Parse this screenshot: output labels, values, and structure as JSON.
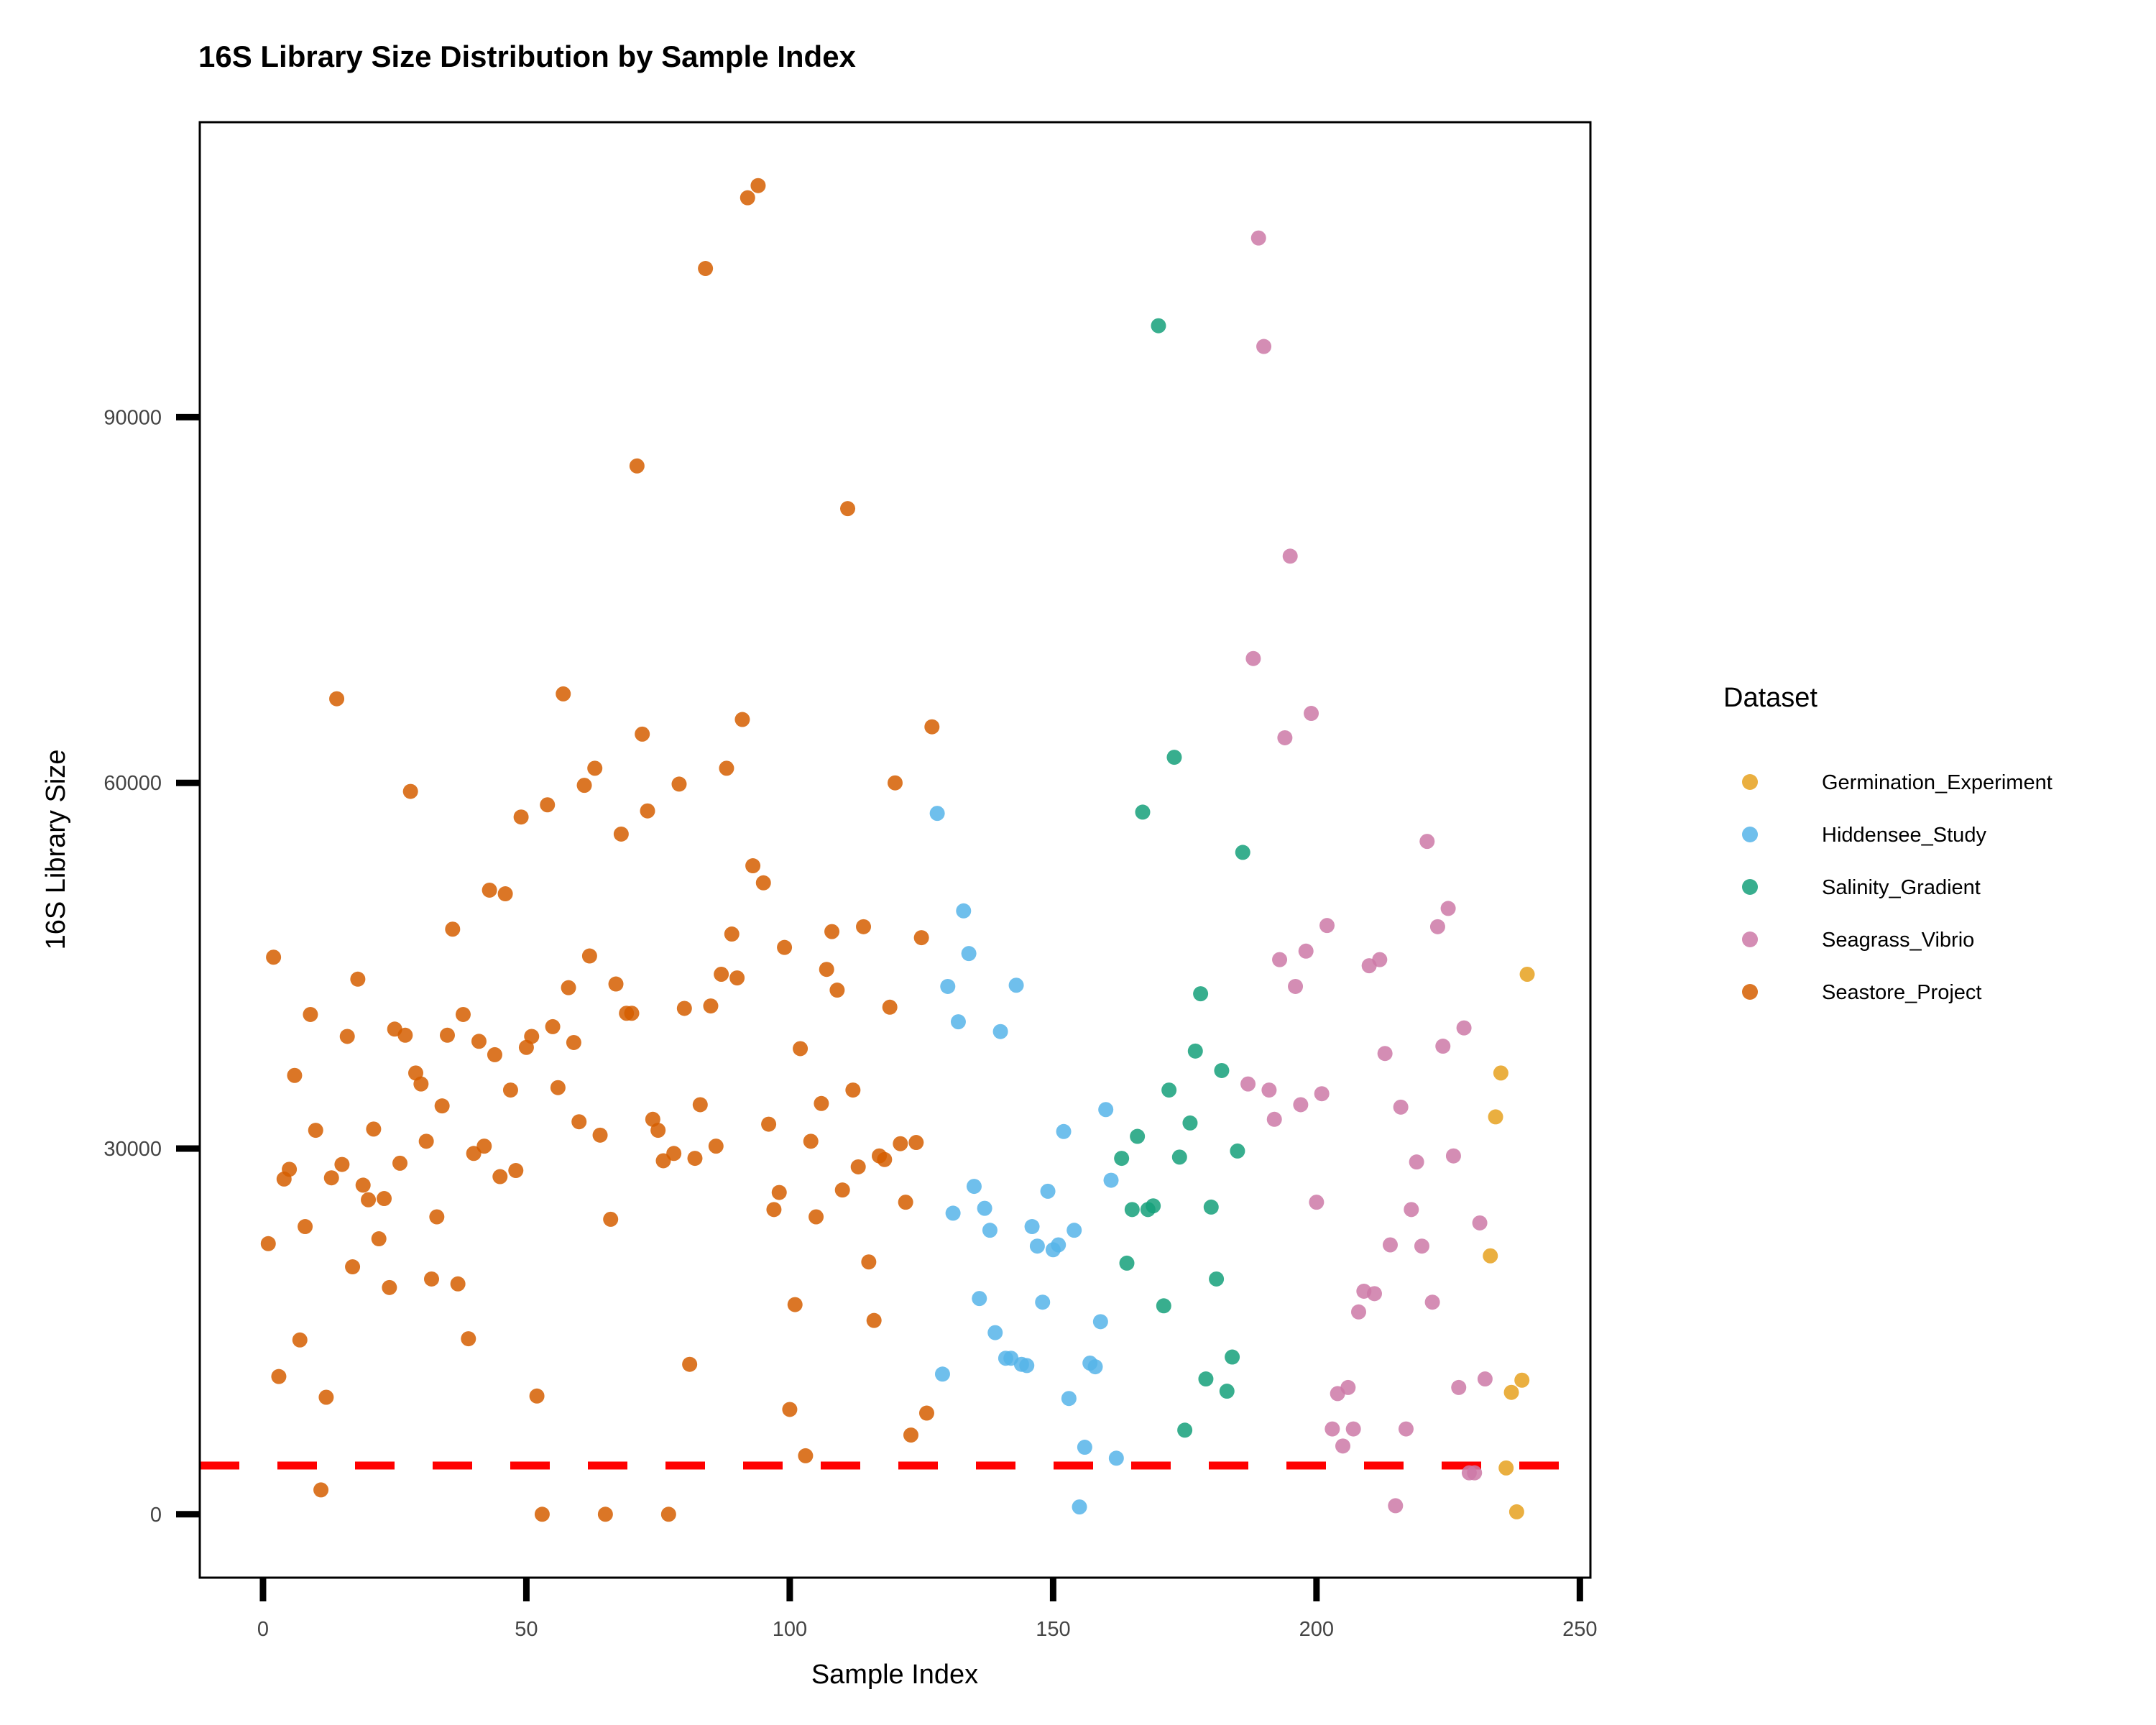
{
  "chart_data": {
    "type": "scatter",
    "title": "16S Library Size Distribution by Sample Index",
    "xlabel": "Sample Index",
    "ylabel": "16S Library Size",
    "xlim": [
      -12,
      252
    ],
    "ylim": [
      -5200,
      114200
    ],
    "xticks": [
      0,
      50,
      100,
      150,
      200,
      250
    ],
    "yticks": [
      0,
      30000,
      60000,
      90000
    ],
    "threshold": 4000,
    "grid": false,
    "legend": {
      "title": "Dataset",
      "position": "right"
    },
    "series": [
      {
        "name": "Germination_Experiment",
        "color": "#E6A11F",
        "points": [
          [
            233,
            21200
          ],
          [
            234,
            32600
          ],
          [
            235,
            36200
          ],
          [
            236,
            3800
          ],
          [
            237,
            10000
          ],
          [
            238,
            200
          ],
          [
            239,
            11000
          ],
          [
            240,
            44300
          ]
        ]
      },
      {
        "name": "Hiddensee_Study",
        "color": "#56B4E9",
        "points": [
          [
            128,
            57500
          ],
          [
            129,
            11500
          ],
          [
            130,
            43300
          ],
          [
            131,
            24700
          ],
          [
            132,
            40400
          ],
          [
            133,
            49500
          ],
          [
            134,
            46000
          ],
          [
            135,
            26900
          ],
          [
            136,
            17700
          ],
          [
            137,
            25100
          ],
          [
            138,
            23300
          ],
          [
            139,
            14900
          ],
          [
            140,
            39600
          ],
          [
            141,
            12800
          ],
          [
            142,
            12800
          ],
          [
            143,
            43400
          ],
          [
            144,
            12300
          ],
          [
            145,
            12200
          ],
          [
            146,
            23600
          ],
          [
            147,
            22000
          ],
          [
            148,
            17400
          ],
          [
            149,
            26500
          ],
          [
            150,
            21700
          ],
          [
            151,
            22100
          ],
          [
            152,
            31400
          ],
          [
            153,
            9500
          ],
          [
            154,
            23300
          ],
          [
            155,
            600
          ],
          [
            156,
            5500
          ],
          [
            157,
            12400
          ],
          [
            158,
            12100
          ],
          [
            159,
            15800
          ],
          [
            160,
            33200
          ],
          [
            161,
            27400
          ],
          [
            162,
            4600
          ]
        ]
      },
      {
        "name": "Salinity_Gradient",
        "color": "#15A07A",
        "points": [
          [
            163,
            29200
          ],
          [
            164,
            20600
          ],
          [
            165,
            25000
          ],
          [
            166,
            31000
          ],
          [
            167,
            57600
          ],
          [
            168,
            25000
          ],
          [
            169,
            25300
          ],
          [
            170,
            97500
          ],
          [
            171,
            17100
          ],
          [
            172,
            34800
          ],
          [
            173,
            62100
          ],
          [
            174,
            29300
          ],
          [
            175,
            6900
          ],
          [
            176,
            32100
          ],
          [
            177,
            38000
          ],
          [
            178,
            42700
          ],
          [
            179,
            11100
          ],
          [
            180,
            25200
          ],
          [
            181,
            19300
          ],
          [
            182,
            36400
          ],
          [
            183,
            10100
          ],
          [
            184,
            12900
          ],
          [
            185,
            29800
          ],
          [
            186,
            54300
          ]
        ]
      },
      {
        "name": "Seagrass_Vibrio",
        "color": "#CC79A7",
        "points": [
          [
            187,
            35300
          ],
          [
            188,
            70200
          ],
          [
            189,
            104700
          ],
          [
            190,
            95800
          ],
          [
            191,
            34800
          ],
          [
            192,
            32400
          ],
          [
            193,
            45500
          ],
          [
            194,
            63700
          ],
          [
            195,
            78600
          ],
          [
            196,
            43300
          ],
          [
            197,
            33600
          ],
          [
            198,
            46200
          ],
          [
            199,
            65700
          ],
          [
            200,
            25600
          ],
          [
            201,
            34500
          ],
          [
            202,
            48300
          ],
          [
            203,
            7000
          ],
          [
            204,
            9900
          ],
          [
            205,
            5600
          ],
          [
            206,
            10400
          ],
          [
            207,
            7000
          ],
          [
            208,
            16600
          ],
          [
            209,
            18300
          ],
          [
            210,
            45000
          ],
          [
            211,
            18100
          ],
          [
            212,
            45500
          ],
          [
            213,
            37800
          ],
          [
            214,
            22100
          ],
          [
            215,
            700
          ],
          [
            216,
            33400
          ],
          [
            217,
            7000
          ],
          [
            218,
            25000
          ],
          [
            219,
            28900
          ],
          [
            220,
            22000
          ],
          [
            221,
            55200
          ],
          [
            222,
            17400
          ],
          [
            223,
            48200
          ],
          [
            224,
            38400
          ],
          [
            225,
            49700
          ],
          [
            226,
            29400
          ],
          [
            227,
            10400
          ],
          [
            228,
            39900
          ],
          [
            229,
            3400
          ],
          [
            230,
            3400
          ],
          [
            231,
            23900
          ],
          [
            232,
            11100
          ]
        ]
      },
      {
        "name": "Seastore_Project",
        "color": "#D55E00",
        "points": [
          [
            1,
            22200
          ],
          [
            2,
            45700
          ],
          [
            3,
            11300
          ],
          [
            4,
            27500
          ],
          [
            5,
            28300
          ],
          [
            6,
            36000
          ],
          [
            7,
            14300
          ],
          [
            8,
            23600
          ],
          [
            9,
            41000
          ],
          [
            10,
            31500
          ],
          [
            11,
            2000
          ],
          [
            12,
            9600
          ],
          [
            13,
            27600
          ],
          [
            14,
            66900
          ],
          [
            15,
            28700
          ],
          [
            16,
            39200
          ],
          [
            17,
            20300
          ],
          [
            18,
            43900
          ],
          [
            19,
            27000
          ],
          [
            20,
            25800
          ],
          [
            21,
            31600
          ],
          [
            22,
            22600
          ],
          [
            23,
            25900
          ],
          [
            24,
            18600
          ],
          [
            25,
            39800
          ],
          [
            26,
            28800
          ],
          [
            27,
            39300
          ],
          [
            28,
            59300
          ],
          [
            29,
            36200
          ],
          [
            30,
            35300
          ],
          [
            31,
            30600
          ],
          [
            32,
            19300
          ],
          [
            33,
            24400
          ],
          [
            34,
            33500
          ],
          [
            35,
            39300
          ],
          [
            36,
            48000
          ],
          [
            37,
            18900
          ],
          [
            38,
            41000
          ],
          [
            39,
            14400
          ],
          [
            40,
            29600
          ],
          [
            41,
            38800
          ],
          [
            42,
            30200
          ],
          [
            43,
            51200
          ],
          [
            44,
            37700
          ],
          [
            45,
            27700
          ],
          [
            46,
            50900
          ],
          [
            47,
            34800
          ],
          [
            48,
            28200
          ],
          [
            49,
            57200
          ],
          [
            50,
            38300
          ],
          [
            51,
            39200
          ],
          [
            52,
            9700
          ],
          [
            53,
            0
          ],
          [
            54,
            58200
          ],
          [
            55,
            40000
          ],
          [
            56,
            35000
          ],
          [
            57,
            67300
          ],
          [
            58,
            43200
          ],
          [
            59,
            38700
          ],
          [
            60,
            32200
          ],
          [
            61,
            59800
          ],
          [
            62,
            45800
          ],
          [
            63,
            61200
          ],
          [
            64,
            31100
          ],
          [
            65,
            0
          ],
          [
            66,
            24200
          ],
          [
            67,
            43500
          ],
          [
            68,
            55800
          ],
          [
            69,
            41100
          ],
          [
            70,
            41100
          ],
          [
            71,
            86000
          ],
          [
            72,
            64000
          ],
          [
            73,
            57700
          ],
          [
            74,
            32400
          ],
          [
            75,
            31500
          ],
          [
            76,
            29000
          ],
          [
            77,
            0
          ],
          [
            78,
            29600
          ],
          [
            79,
            59900
          ],
          [
            80,
            41500
          ],
          [
            81,
            12300
          ],
          [
            82,
            29200
          ],
          [
            83,
            33600
          ],
          [
            84,
            102200
          ],
          [
            85,
            41700
          ],
          [
            86,
            30200
          ],
          [
            87,
            44300
          ],
          [
            88,
            61200
          ],
          [
            89,
            47600
          ],
          [
            90,
            44000
          ],
          [
            91,
            65200
          ],
          [
            92,
            108000
          ],
          [
            93,
            53200
          ],
          [
            94,
            109000
          ],
          [
            95,
            51800
          ],
          [
            96,
            32000
          ],
          [
            97,
            25000
          ],
          [
            98,
            26400
          ],
          [
            99,
            46500
          ],
          [
            100,
            8600
          ],
          [
            101,
            17200
          ],
          [
            102,
            38200
          ],
          [
            103,
            4800
          ],
          [
            104,
            30600
          ],
          [
            105,
            24400
          ],
          [
            106,
            33700
          ],
          [
            107,
            44700
          ],
          [
            108,
            47800
          ],
          [
            109,
            43000
          ],
          [
            110,
            26600
          ],
          [
            111,
            82500
          ],
          [
            112,
            34800
          ],
          [
            113,
            28500
          ],
          [
            114,
            48200
          ],
          [
            115,
            20700
          ],
          [
            116,
            15900
          ],
          [
            117,
            29400
          ],
          [
            118,
            29100
          ],
          [
            119,
            41600
          ],
          [
            120,
            60000
          ],
          [
            121,
            30400
          ],
          [
            122,
            25600
          ],
          [
            123,
            6500
          ],
          [
            124,
            30500
          ],
          [
            125,
            47300
          ],
          [
            126,
            8300
          ],
          [
            127,
            64600
          ]
        ]
      }
    ]
  }
}
